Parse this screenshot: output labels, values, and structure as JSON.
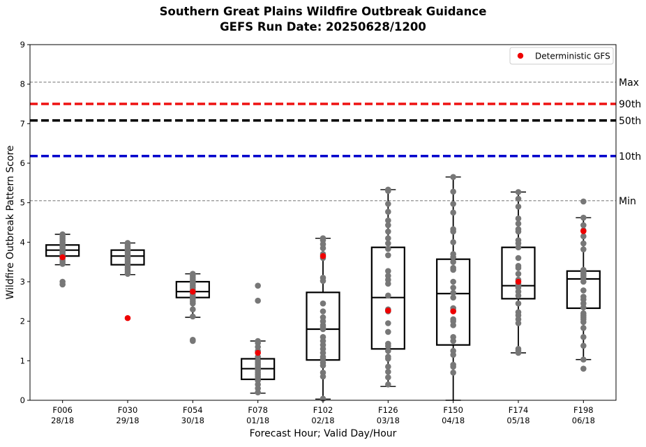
{
  "chart_data": {
    "type": "boxplot",
    "title_line1": "Southern Great Plains Wildfire Outbreak Guidance",
    "title_line2": "GEFS Run Date: 20250628/1200",
    "xlabel": "Forecast Hour; Valid Day/Hour",
    "ylabel": "Wildfire Outbreak Pattern Score",
    "ylim": [
      0,
      9
    ],
    "yticks": [
      "0",
      "1",
      "2",
      "3",
      "4",
      "5",
      "6",
      "7",
      "8",
      "9"
    ],
    "legend": {
      "label": "Deterministic GFS",
      "placement": "top-right",
      "color": "#ee0000"
    },
    "reference_lines": [
      {
        "label": "Max",
        "value": 8.05,
        "style": "dashed-thin",
        "color": "#808080"
      },
      {
        "label": "90th",
        "value": 7.5,
        "style": "dashed-thick",
        "color": "#ee1111"
      },
      {
        "label": "50th",
        "value": 7.08,
        "style": "dashed-thick",
        "color": "#000000"
      },
      {
        "label": "10th",
        "value": 6.18,
        "style": "dashed-thick",
        "color": "#0000cc"
      },
      {
        "label": "Min",
        "value": 5.05,
        "style": "dashed-thin",
        "color": "#808080"
      }
    ],
    "categories": [
      {
        "hour": "F006",
        "valid": "28/18",
        "q1": 3.65,
        "median": 3.8,
        "q3": 3.93,
        "whislo": 3.43,
        "whishi": 4.2,
        "gfs": 3.62,
        "members": [
          4.2,
          4.15,
          4.1,
          4.05,
          4.0,
          3.95,
          3.9,
          3.88,
          3.85,
          3.82,
          3.8,
          3.78,
          3.75,
          3.72,
          3.7,
          3.68,
          3.65,
          3.6,
          3.55,
          3.5,
          3.45,
          3.0,
          2.93
        ]
      },
      {
        "hour": "F030",
        "valid": "29/18",
        "q1": 3.43,
        "median": 3.65,
        "q3": 3.8,
        "whislo": 3.18,
        "whishi": 3.98,
        "gfs": 2.08,
        "members": [
          3.98,
          3.95,
          3.9,
          3.85,
          3.8,
          3.75,
          3.7,
          3.65,
          3.6,
          3.55,
          3.5,
          3.45,
          3.4,
          3.35,
          3.3,
          3.25,
          3.2
        ]
      },
      {
        "hour": "F054",
        "valid": "30/18",
        "q1": 2.6,
        "median": 2.75,
        "q3": 3.0,
        "whislo": 2.1,
        "whishi": 3.2,
        "gfs": 2.75,
        "members": [
          3.2,
          3.15,
          3.1,
          3.05,
          3.0,
          2.95,
          2.9,
          2.85,
          2.8,
          2.75,
          2.7,
          2.65,
          2.6,
          2.55,
          2.5,
          2.45,
          2.3,
          2.12,
          1.53,
          1.5
        ]
      },
      {
        "hour": "F078",
        "valid": "01/18",
        "q1": 0.53,
        "median": 0.8,
        "q3": 1.05,
        "whislo": 0.18,
        "whishi": 1.5,
        "gfs": 1.2,
        "members": [
          2.9,
          2.52,
          1.5,
          1.45,
          1.35,
          1.25,
          1.1,
          1.0,
          0.95,
          0.9,
          0.85,
          0.8,
          0.75,
          0.7,
          0.65,
          0.6,
          0.55,
          0.5,
          0.4,
          0.3,
          0.2
        ]
      },
      {
        "hour": "F102",
        "valid": "02/18",
        "q1": 1.02,
        "median": 1.8,
        "q3": 2.73,
        "whislo": 0.03,
        "whishi": 4.1,
        "gfs": 3.65,
        "members": [
          4.1,
          4.05,
          3.95,
          3.85,
          3.7,
          3.6,
          3.1,
          3.02,
          2.45,
          2.25,
          2.1,
          2.0,
          1.9,
          1.85,
          1.8,
          1.6,
          1.5,
          1.4,
          1.3,
          1.2,
          1.1,
          1.05,
          0.95,
          0.88,
          0.7,
          0.6,
          0.04
        ]
      },
      {
        "hour": "F126",
        "valid": "03/18",
        "q1": 1.3,
        "median": 2.6,
        "q3": 3.87,
        "whislo": 0.35,
        "whishi": 5.33,
        "gfs": 2.27,
        "members": [
          5.33,
          5.3,
          4.97,
          4.77,
          4.55,
          4.43,
          4.27,
          4.1,
          3.97,
          3.83,
          3.67,
          3.27,
          3.15,
          3.05,
          2.95,
          2.65,
          2.3,
          2.25,
          1.95,
          1.73,
          1.43,
          1.37,
          1.25,
          1.1,
          1.05,
          0.85,
          0.72,
          0.58,
          0.4
        ]
      },
      {
        "hour": "F150",
        "valid": "04/18",
        "q1": 1.4,
        "median": 2.7,
        "q3": 3.57,
        "whislo": 0.0,
        "whishi": 5.65,
        "gfs": 2.25,
        "members": [
          5.65,
          5.28,
          4.97,
          4.75,
          4.33,
          4.27,
          4.0,
          3.7,
          3.62,
          3.5,
          3.35,
          3.3,
          3.0,
          2.85,
          2.72,
          2.6,
          2.33,
          2.27,
          2.05,
          2.0,
          1.9,
          1.6,
          1.5,
          1.25,
          1.15,
          0.9,
          0.85,
          0.7
        ]
      },
      {
        "hour": "F174",
        "valid": "05/18",
        "q1": 2.57,
        "median": 2.9,
        "q3": 3.87,
        "whislo": 1.2,
        "whishi": 5.27,
        "gfs": 3.0,
        "members": [
          5.27,
          5.1,
          4.9,
          4.6,
          4.47,
          4.33,
          4.27,
          4.05,
          3.97,
          3.87,
          3.6,
          3.4,
          3.35,
          3.2,
          3.05,
          2.95,
          2.9,
          2.85,
          2.75,
          2.65,
          2.45,
          2.23,
          2.15,
          2.05,
          1.95,
          1.3,
          1.25,
          1.2
        ]
      },
      {
        "hour": "F198",
        "valid": "06/18",
        "q1": 2.33,
        "median": 3.07,
        "q3": 3.27,
        "whislo": 1.03,
        "whishi": 4.62,
        "gfs": 4.28,
        "members": [
          5.03,
          4.62,
          4.43,
          4.3,
          4.15,
          3.97,
          3.82,
          3.3,
          3.25,
          3.2,
          3.15,
          3.1,
          3.0,
          2.78,
          2.62,
          2.55,
          2.45,
          2.35,
          2.2,
          2.15,
          2.1,
          2.05,
          1.98,
          1.83,
          1.6,
          1.38,
          1.03,
          0.8
        ]
      }
    ]
  }
}
